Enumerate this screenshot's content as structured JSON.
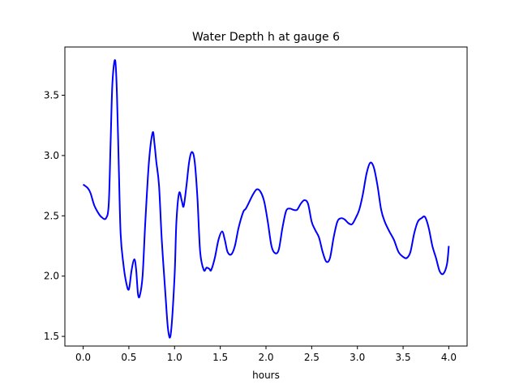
{
  "chart_data": {
    "type": "line",
    "title": "Water Depth h at gauge 6",
    "xlabel": "hours",
    "ylabel": "",
    "xlim": [
      -0.2,
      4.2
    ],
    "ylim": [
      1.42,
      3.9
    ],
    "xticks": [
      0.0,
      0.5,
      1.0,
      1.5,
      2.0,
      2.5,
      3.0,
      3.5,
      4.0
    ],
    "xtick_labels": [
      "0.0",
      "0.5",
      "1.0",
      "1.5",
      "2.0",
      "2.5",
      "3.0",
      "3.5",
      "4.0"
    ],
    "yticks": [
      1.5,
      2.0,
      2.5,
      3.0,
      3.5
    ],
    "ytick_labels": [
      "1.5",
      "2.0",
      "2.5",
      "3.0",
      "3.5"
    ],
    "grid": false,
    "series_color": "#0000ff",
    "series": [
      {
        "x": [
          0.0,
          0.05,
          0.08,
          0.12,
          0.16,
          0.2,
          0.25,
          0.28,
          0.3,
          0.32,
          0.35,
          0.37,
          0.39,
          0.41,
          0.44,
          0.47,
          0.5,
          0.53,
          0.56,
          0.58,
          0.6,
          0.62,
          0.65,
          0.68,
          0.72,
          0.76,
          0.78,
          0.8,
          0.83,
          0.86,
          0.9,
          0.93,
          0.96,
          1.0,
          1.02,
          1.05,
          1.08,
          1.1,
          1.13,
          1.16,
          1.19,
          1.22,
          1.25,
          1.28,
          1.32,
          1.35,
          1.38,
          1.4,
          1.44,
          1.48,
          1.52,
          1.55,
          1.58,
          1.62,
          1.66,
          1.7,
          1.75,
          1.78,
          1.82,
          1.86,
          1.9,
          1.94,
          1.98,
          2.02,
          2.06,
          2.1,
          2.14,
          2.18,
          2.22,
          2.26,
          2.3,
          2.34,
          2.38,
          2.42,
          2.46,
          2.5,
          2.54,
          2.58,
          2.62,
          2.66,
          2.7,
          2.74,
          2.78,
          2.82,
          2.86,
          2.9,
          2.94,
          2.98,
          3.02,
          3.06,
          3.1,
          3.14,
          3.18,
          3.22,
          3.26,
          3.3,
          3.35,
          3.4,
          3.45,
          3.5,
          3.54,
          3.58,
          3.62,
          3.66,
          3.7,
          3.74,
          3.78,
          3.82,
          3.86,
          3.9,
          3.94,
          3.98,
          4.0
        ],
        "y": [
          2.76,
          2.73,
          2.69,
          2.59,
          2.53,
          2.49,
          2.48,
          2.6,
          3.1,
          3.6,
          3.79,
          3.5,
          2.9,
          2.35,
          2.1,
          1.95,
          1.89,
          2.05,
          2.14,
          2.05,
          1.85,
          1.84,
          2.0,
          2.45,
          2.95,
          3.19,
          3.1,
          2.95,
          2.75,
          2.3,
          1.85,
          1.55,
          1.53,
          2.0,
          2.45,
          2.69,
          2.62,
          2.58,
          2.75,
          2.95,
          3.03,
          2.95,
          2.65,
          2.2,
          2.05,
          2.07,
          2.06,
          2.05,
          2.15,
          2.3,
          2.37,
          2.3,
          2.2,
          2.18,
          2.25,
          2.4,
          2.53,
          2.56,
          2.62,
          2.68,
          2.72,
          2.7,
          2.62,
          2.45,
          2.25,
          2.19,
          2.22,
          2.4,
          2.54,
          2.56,
          2.55,
          2.55,
          2.6,
          2.63,
          2.6,
          2.45,
          2.38,
          2.32,
          2.2,
          2.12,
          2.15,
          2.32,
          2.45,
          2.48,
          2.47,
          2.44,
          2.43,
          2.48,
          2.55,
          2.68,
          2.85,
          2.94,
          2.9,
          2.75,
          2.55,
          2.45,
          2.37,
          2.3,
          2.2,
          2.16,
          2.15,
          2.2,
          2.35,
          2.45,
          2.48,
          2.49,
          2.4,
          2.25,
          2.15,
          2.04,
          2.02,
          2.1,
          2.25
        ]
      }
    ]
  }
}
